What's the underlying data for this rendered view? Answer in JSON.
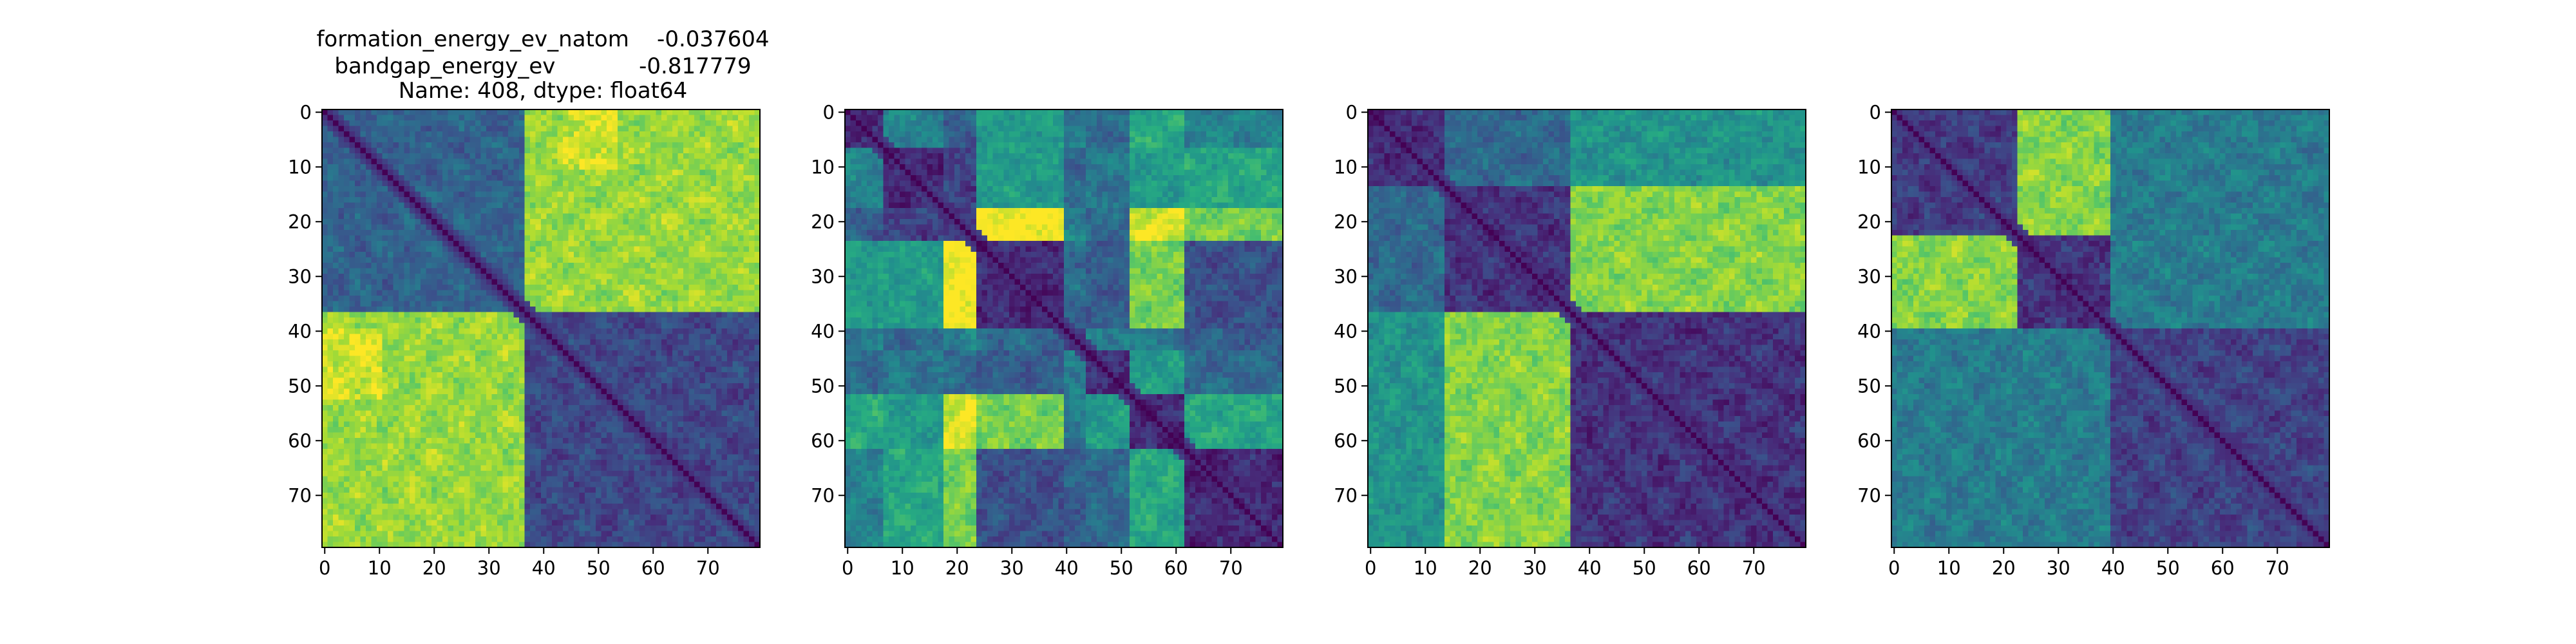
{
  "figure": {
    "title_lines": [
      "formation_energy_ev_natom    -0.037604",
      "bandgap_energy_ev            -0.817779",
      "Name: 408, dtype: float64"
    ]
  },
  "chart_data": [
    {
      "type": "heatmap",
      "colormap": "viridis",
      "size": 80,
      "x_ticks": [
        0,
        10,
        20,
        30,
        40,
        50,
        60,
        70
      ],
      "y_ticks": [
        0,
        10,
        20,
        30,
        40,
        50,
        60,
        70
      ],
      "xlim": [
        0,
        79
      ],
      "ylim": [
        79,
        0
      ],
      "block_boundaries": [
        37
      ],
      "block_levels": [
        [
          0.32,
          0.85
        ],
        [
          0.85,
          0.22
        ]
      ],
      "diagonal": "dark (distance 0)",
      "hotspots": [
        {
          "rows": [
            0,
            10
          ],
          "cols": [
            44,
            53
          ],
          "level": 0.98
        },
        {
          "rows": [
            40,
            52
          ],
          "cols": [
            0,
            10
          ],
          "level": 0.98
        }
      ]
    },
    {
      "type": "heatmap",
      "colormap": "viridis",
      "size": 80,
      "x_ticks": [
        0,
        10,
        20,
        30,
        40,
        50,
        60,
        70
      ],
      "y_ticks": [
        0,
        10,
        20,
        30,
        40,
        50,
        60,
        70
      ],
      "xlim": [
        0,
        79
      ],
      "ylim": [
        79,
        0
      ],
      "block_boundaries": [
        7,
        18,
        24,
        40,
        44,
        52,
        62
      ],
      "block_levels": [
        [
          0.15,
          0.45,
          0.3,
          0.55,
          0.4,
          0.35,
          0.6,
          0.45
        ],
        [
          0.45,
          0.12,
          0.2,
          0.55,
          0.35,
          0.4,
          0.55,
          0.6
        ],
        [
          0.3,
          0.2,
          0.18,
          1.0,
          0.45,
          0.35,
          0.95,
          0.8
        ],
        [
          0.55,
          0.55,
          1.0,
          0.12,
          0.35,
          0.3,
          0.8,
          0.25
        ],
        [
          0.4,
          0.35,
          0.45,
          0.35,
          0.15,
          0.45,
          0.4,
          0.3
        ],
        [
          0.35,
          0.4,
          0.35,
          0.3,
          0.45,
          0.12,
          0.55,
          0.35
        ],
        [
          0.6,
          0.55,
          0.95,
          0.8,
          0.4,
          0.55,
          0.12,
          0.6
        ],
        [
          0.45,
          0.6,
          0.8,
          0.25,
          0.3,
          0.35,
          0.6,
          0.12
        ]
      ],
      "diagonal": "dark (distance 0)",
      "hotspots": []
    },
    {
      "type": "heatmap",
      "colormap": "viridis",
      "size": 80,
      "x_ticks": [
        0,
        10,
        20,
        30,
        40,
        50,
        60,
        70
      ],
      "y_ticks": [
        0,
        10,
        20,
        30,
        40,
        50,
        60,
        70
      ],
      "xlim": [
        0,
        79
      ],
      "ylim": [
        79,
        0
      ],
      "block_boundaries": [
        14,
        37
      ],
      "block_levels": [
        [
          0.14,
          0.35,
          0.52
        ],
        [
          0.35,
          0.15,
          0.82
        ],
        [
          0.52,
          0.82,
          0.15
        ]
      ],
      "diagonal": "dark (distance 0)",
      "hotspots": []
    },
    {
      "type": "heatmap",
      "colormap": "viridis",
      "size": 80,
      "x_ticks": [
        0,
        10,
        20,
        30,
        40,
        50,
        60,
        70
      ],
      "y_ticks": [
        0,
        10,
        20,
        30,
        40,
        50,
        60,
        70
      ],
      "xlim": [
        0,
        79
      ],
      "ylim": [
        79,
        0
      ],
      "block_boundaries": [
        23,
        40
      ],
      "block_levels": [
        [
          0.18,
          0.82,
          0.42
        ],
        [
          0.82,
          0.15,
          0.42
        ],
        [
          0.42,
          0.42,
          0.2
        ]
      ],
      "diagonal": "dark (distance 0)",
      "hotspots": []
    }
  ]
}
